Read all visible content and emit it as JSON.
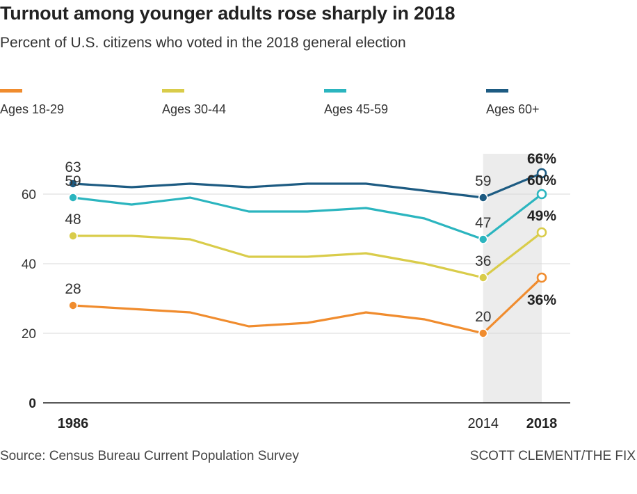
{
  "header": {
    "title": "Turnout among younger adults rose sharply in 2018",
    "subtitle": "Percent of U.S. citizens who voted in the 2018 general election"
  },
  "footer": {
    "source": "Source: Census Bureau Current Population Survey",
    "credit": "SCOTT CLEMENT/THE FIX"
  },
  "chart_data": {
    "type": "line",
    "title": "Turnout among younger adults rose sharply in 2018",
    "subtitle": "Percent of U.S. citizens who voted in the 2018 general election",
    "x": [
      1986,
      1990,
      1994,
      1998,
      2002,
      2006,
      2010,
      2014,
      2018
    ],
    "x_tick_labels": [
      "1986",
      "2014",
      "2018"
    ],
    "y_ticks": [
      0,
      20,
      40,
      60
    ],
    "ylim": [
      0,
      70
    ],
    "highlight_range": [
      2014,
      2018
    ],
    "grid": true,
    "legend_position": "top",
    "series": [
      {
        "name": "Ages 18-29",
        "color": "#f08c2e",
        "values": [
          28,
          27,
          26,
          22,
          23,
          26,
          24,
          20,
          36
        ]
      },
      {
        "name": "Ages 30-44",
        "color": "#d9cc4a",
        "values": [
          48,
          48,
          47,
          42,
          42,
          43,
          40,
          36,
          49
        ]
      },
      {
        "name": "Ages 45-59",
        "color": "#2bb5bf",
        "values": [
          59,
          57,
          59,
          55,
          55,
          56,
          53,
          47,
          60
        ]
      },
      {
        "name": "Ages 60+",
        "color": "#1d5b82",
        "values": [
          63,
          62,
          63,
          62,
          63,
          63,
          61,
          59,
          66
        ]
      }
    ],
    "data_labels": [
      {
        "series": 0,
        "x": 1986,
        "text": "28"
      },
      {
        "series": 0,
        "x": 2014,
        "text": "20"
      },
      {
        "series": 0,
        "x": 2018,
        "text": "36%"
      },
      {
        "series": 1,
        "x": 1986,
        "text": "48"
      },
      {
        "series": 1,
        "x": 2014,
        "text": "36"
      },
      {
        "series": 1,
        "x": 2018,
        "text": "49%"
      },
      {
        "series": 2,
        "x": 1986,
        "text": "59"
      },
      {
        "series": 2,
        "x": 2014,
        "text": "47"
      },
      {
        "series": 2,
        "x": 2018,
        "text": "60%"
      },
      {
        "series": 3,
        "x": 1986,
        "text": "63"
      },
      {
        "series": 3,
        "x": 2014,
        "text": "59"
      },
      {
        "series": 3,
        "x": 2018,
        "text": "66%"
      }
    ]
  }
}
